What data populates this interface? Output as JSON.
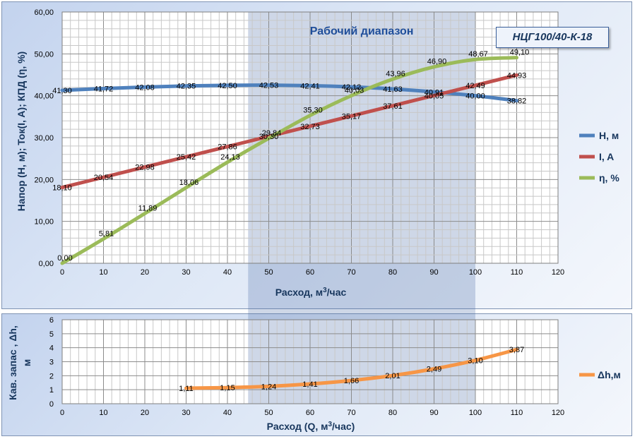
{
  "chart_data": [
    {
      "type": "line",
      "model_label": "НЦГ100/40-К-18",
      "range_label": "Рабочий диапазон",
      "working_range_x": [
        45,
        100
      ],
      "xlabel_main": "Расход, м",
      "xlabel_sup": "3",
      "xlabel_tail": "/час",
      "ylabel": "Напор (Н, м); Ток(I, A); КПД (η, %)",
      "xlim": [
        0,
        120
      ],
      "ylim": [
        0,
        60
      ],
      "x_ticks": [
        "0",
        "10",
        "20",
        "30",
        "40",
        "50",
        "60",
        "70",
        "80",
        "90",
        "100",
        "110",
        "120"
      ],
      "y_ticks": [
        "0,00",
        "10,00",
        "20,00",
        "30,00",
        "40,00",
        "50,00",
        "60,00"
      ],
      "grid": true,
      "legend_position": "right",
      "series": [
        {
          "name": "Н, м",
          "color": "#4f81bd",
          "x": [
            0,
            10,
            20,
            30,
            40,
            50,
            60,
            70,
            80,
            90,
            100,
            110
          ],
          "values": [
            41.3,
            41.72,
            42.08,
            42.35,
            42.5,
            42.53,
            42.41,
            42.12,
            41.63,
            40.91,
            40.0,
            38.82
          ],
          "labels": [
            "41,30",
            "41,72",
            "42,08",
            "42,35",
            "42,50",
            "42,53",
            "42,41",
            "42,12",
            "41,63",
            "40,91",
            "40,00",
            "38,82"
          ]
        },
        {
          "name": "I, A",
          "color": "#c0504d",
          "x": [
            0,
            10,
            20,
            30,
            40,
            50,
            60,
            70,
            80,
            90,
            100,
            110
          ],
          "values": [
            18.1,
            20.54,
            22.98,
            25.42,
            27.86,
            30.3,
            32.73,
            35.17,
            37.61,
            40.05,
            42.49,
            44.93
          ],
          "labels": [
            "18,10",
            "20,54",
            "22,98",
            "25,42",
            "27,86",
            "30,30",
            "32,73",
            "35,17",
            "37,61",
            "40,05",
            "42,49",
            "44,93"
          ]
        },
        {
          "name": "η, %",
          "color": "#9bbb59",
          "x": [
            0,
            10,
            20,
            30,
            40,
            50,
            60,
            70,
            80,
            90,
            100,
            110
          ],
          "values": [
            0.0,
            5.81,
            11.89,
            18.06,
            24.13,
            29.84,
            35.3,
            40.03,
            43.96,
            46.9,
            48.67,
            49.1
          ],
          "labels": [
            "0,00",
            "5,81",
            "11,89",
            "18,06",
            "24,13",
            "29,84",
            "35,30",
            "40,03",
            "43,96",
            "46,90",
            "48,67",
            "49,10"
          ]
        }
      ]
    },
    {
      "type": "line",
      "xlabel_main": "Расход  (Q, м",
      "xlabel_sup": "3",
      "xlabel_tail": "/час)",
      "ylabel_line1": "Кав. запас , Δh,",
      "ylabel_line2": "м",
      "xlim": [
        0,
        120
      ],
      "ylim": [
        0,
        6
      ],
      "x_ticks": [
        "0",
        "10",
        "20",
        "30",
        "40",
        "50",
        "60",
        "70",
        "80",
        "90",
        "100",
        "110",
        "120"
      ],
      "y_ticks": [
        "0",
        "1",
        "2",
        "3",
        "4",
        "5",
        "6"
      ],
      "grid": true,
      "legend_position": "right",
      "series": [
        {
          "name": "Δh,м",
          "color": "#f79646",
          "x": [
            30,
            40,
            50,
            60,
            70,
            80,
            90,
            100,
            110
          ],
          "values": [
            1.11,
            1.15,
            1.24,
            1.41,
            1.66,
            2.01,
            2.49,
            3.1,
            3.87
          ],
          "labels": [
            "1,11",
            "1,15",
            "1,24",
            "1,41",
            "1,66",
            "2,01",
            "2,49",
            "3,10",
            "3,87"
          ]
        }
      ]
    }
  ]
}
